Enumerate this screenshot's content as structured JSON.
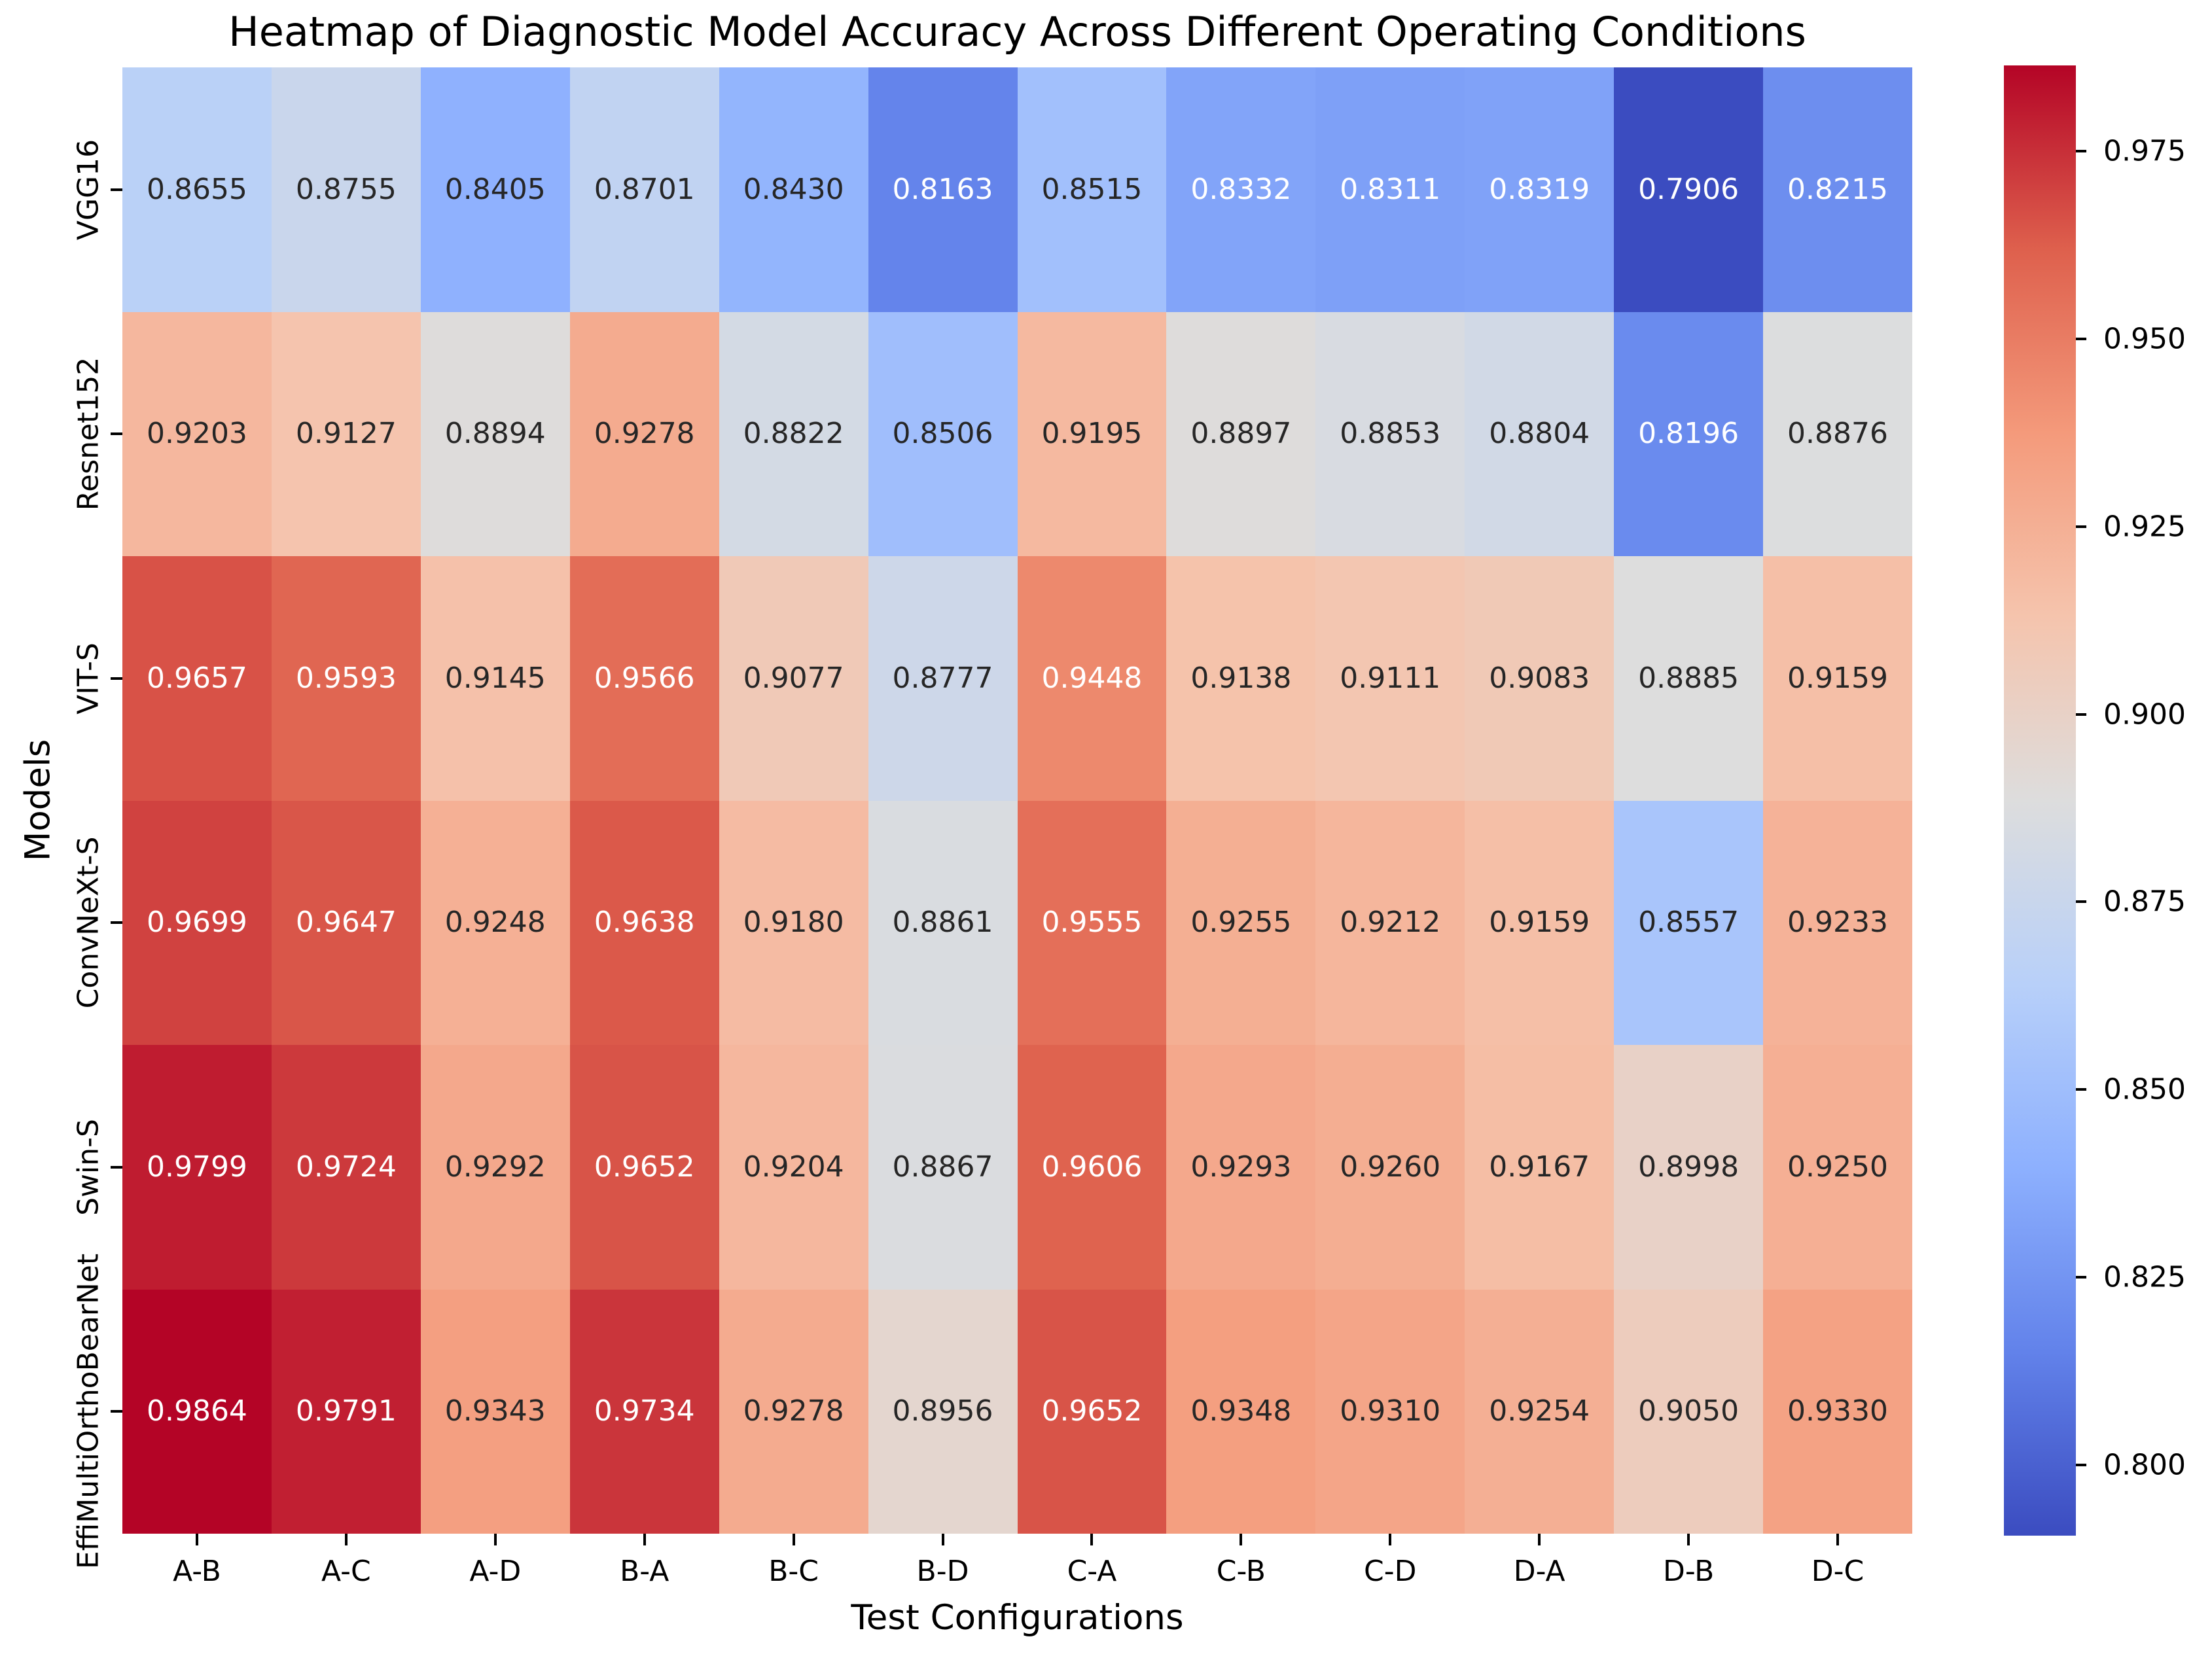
{
  "chart_data": {
    "type": "heatmap",
    "title": "Heatmap of Diagnostic Model Accuracy Across Different Operating Conditions",
    "xlabel": "Test Configurations",
    "ylabel": "Models",
    "rows": [
      "VGG16",
      "Resnet152",
      "VIT-S",
      "ConvNeXt-S",
      "Swin-S",
      "EffiMultiOrthoBearNet"
    ],
    "columns": [
      "A-B",
      "A-C",
      "A-D",
      "B-A",
      "B-C",
      "B-D",
      "C-A",
      "C-B",
      "C-D",
      "D-A",
      "D-B",
      "D-C"
    ],
    "values": [
      [
        0.8655,
        0.8755,
        0.8405,
        0.8701,
        0.843,
        0.8163,
        0.8515,
        0.8332,
        0.8311,
        0.8319,
        0.7906,
        0.8215
      ],
      [
        0.9203,
        0.9127,
        0.8894,
        0.9278,
        0.8822,
        0.8506,
        0.9195,
        0.8897,
        0.8853,
        0.8804,
        0.8196,
        0.8876
      ],
      [
        0.9657,
        0.9593,
        0.9145,
        0.9566,
        0.9077,
        0.8777,
        0.9448,
        0.9138,
        0.9111,
        0.9083,
        0.8885,
        0.9159
      ],
      [
        0.9699,
        0.9647,
        0.9248,
        0.9638,
        0.918,
        0.8861,
        0.9555,
        0.9255,
        0.9212,
        0.9159,
        0.8557,
        0.9233
      ],
      [
        0.9799,
        0.9724,
        0.9292,
        0.9652,
        0.9204,
        0.8867,
        0.9606,
        0.9293,
        0.926,
        0.9167,
        0.8998,
        0.925
      ],
      [
        0.9864,
        0.9791,
        0.9343,
        0.9734,
        0.9278,
        0.8956,
        0.9652,
        0.9348,
        0.931,
        0.9254,
        0.905,
        0.933
      ]
    ],
    "value_decimals": 4,
    "colormap": "coolwarm",
    "vmin": 0.7906,
    "vmax": 0.9864,
    "colorbar_ticks": [
      0.8,
      0.825,
      0.85,
      0.875,
      0.9,
      0.925,
      0.95,
      0.975
    ],
    "colorbar_tick_labels": [
      "0.800",
      "0.825",
      "0.850",
      "0.875",
      "0.900",
      "0.925",
      "0.950",
      "0.975"
    ],
    "grid": false,
    "legend_position": "colorbar-right"
  },
  "colors": {
    "coolwarm_anchors": [
      "#3b4cc0",
      "#6282ea",
      "#8db0fe",
      "#b8d0f9",
      "#dddddd",
      "#f5c4ad",
      "#f49a7b",
      "#de604d",
      "#b40426"
    ],
    "annot_dark": "#262626",
    "annot_light": "#ffffff",
    "background": "#ffffff"
  }
}
